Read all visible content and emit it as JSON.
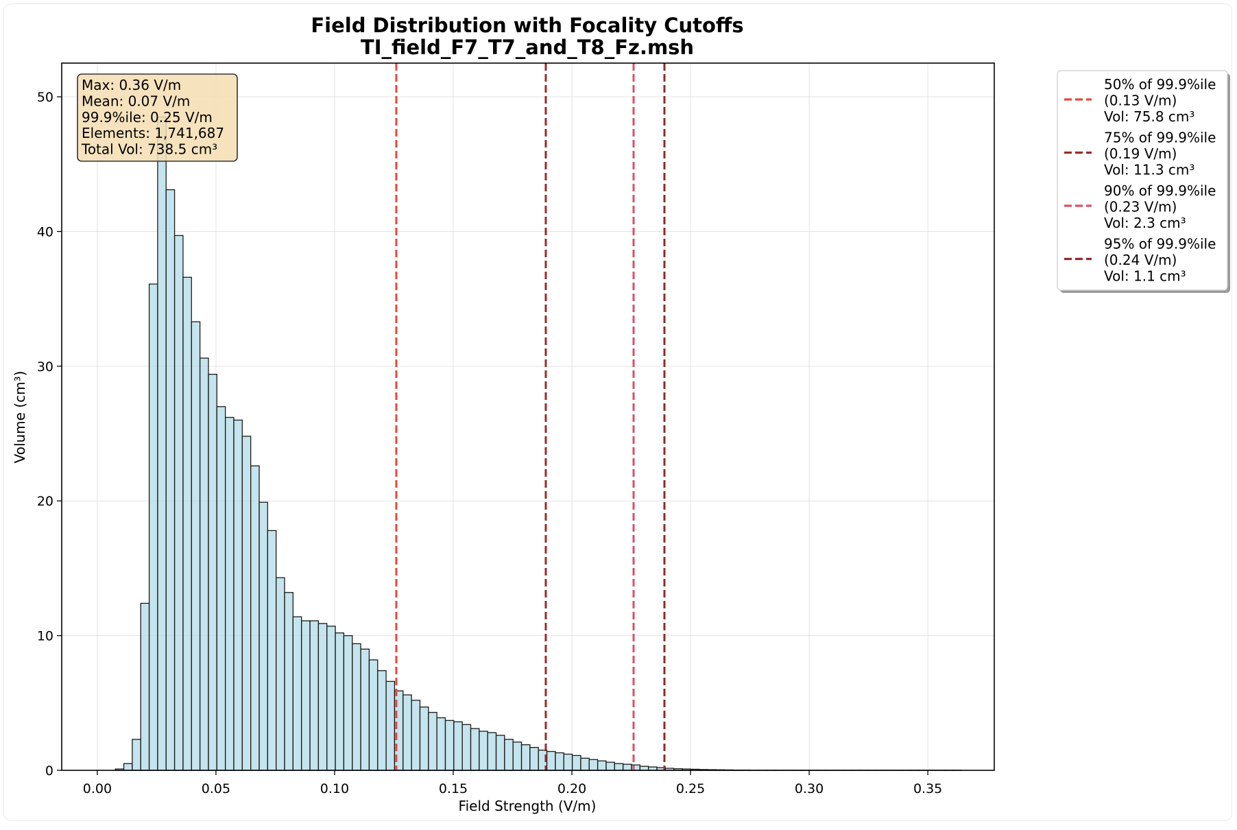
{
  "chart_data": {
    "type": "bar",
    "title": "Field Distribution with Focality Cutoffs",
    "subtitle": "TI_field_F7_T7_and_T8_Fz.msh",
    "xlabel": "Field Strength (V/m)",
    "ylabel": "Volume (cm³)",
    "xlim": [
      -0.015,
      0.378
    ],
    "ylim": [
      0,
      52.5
    ],
    "xticks": [
      0.0,
      0.05,
      0.1,
      0.15,
      0.2,
      0.25,
      0.3,
      0.35
    ],
    "xtick_labels": [
      "0.00",
      "0.05",
      "0.10",
      "0.15",
      "0.20",
      "0.25",
      "0.30",
      "0.35"
    ],
    "yticks": [
      0,
      10,
      20,
      30,
      40,
      50
    ],
    "ytick_labels": [
      "0",
      "10",
      "20",
      "30",
      "40",
      "50"
    ],
    "grid": true,
    "bar_color": "#add8e6",
    "bar_edge_color": "#1a1a1a",
    "bin_start": 0.0076,
    "bin_width": 0.003566,
    "values": [
      0.1,
      0.5,
      2.3,
      12.4,
      36.1,
      48.5,
      43.1,
      39.7,
      36.6,
      33.3,
      30.6,
      29.4,
      27.0,
      26.2,
      26.0,
      24.8,
      22.6,
      19.9,
      17.8,
      14.3,
      13.2,
      11.4,
      11.1,
      11.1,
      10.9,
      10.7,
      10.2,
      10.0,
      9.4,
      9.0,
      8.2,
      7.4,
      6.6,
      5.9,
      5.6,
      5.2,
      4.7,
      4.3,
      3.9,
      3.7,
      3.6,
      3.4,
      3.1,
      2.9,
      2.8,
      2.6,
      2.3,
      2.1,
      1.9,
      1.7,
      1.5,
      1.4,
      1.3,
      1.2,
      1.1,
      0.9,
      0.8,
      0.7,
      0.6,
      0.5,
      0.45,
      0.4,
      0.3,
      0.25,
      0.2,
      0.15,
      0.12,
      0.1,
      0.08,
      0.06,
      0.05,
      0.04,
      0.03,
      0.02,
      0.02,
      0.01,
      0.01,
      0.01,
      0.01,
      0.01,
      0.01,
      0.01,
      0.01,
      0.01,
      0.01,
      0.01,
      0.01,
      0.01,
      0.01,
      0.01,
      0.01,
      0.01,
      0.01,
      0.01,
      0.01,
      0.01,
      0.01,
      0.01,
      0.01,
      0.01
    ],
    "cutoffs": [
      {
        "x": 0.126,
        "color": "#e8473a",
        "legend": [
          "50% of 99.9%ile",
          "(0.13 V/m)",
          "Vol: 75.8 cm³"
        ]
      },
      {
        "x": 0.189,
        "color": "#9b2a2a",
        "legend": [
          "75% of 99.9%ile",
          "(0.19 V/m)",
          "Vol: 11.3 cm³"
        ]
      },
      {
        "x": 0.226,
        "color": "#dc4f63",
        "legend": [
          "90% of 99.9%ile",
          "(0.23 V/m)",
          "Vol: 2.3 cm³"
        ]
      },
      {
        "x": 0.239,
        "color": "#8e2b2b",
        "legend": [
          "95% of 99.9%ile",
          "(0.24 V/m)",
          "Vol: 1.1 cm³"
        ]
      }
    ],
    "info_box": [
      "Max: 0.36 V/m",
      "Mean: 0.07 V/m",
      "99.9%ile: 0.25 V/m",
      "Elements: 1,741,687",
      "Total Vol: 738.5 cm³"
    ],
    "info_box_color": "#f5deb3",
    "legend_position": "upper-right-outside"
  }
}
